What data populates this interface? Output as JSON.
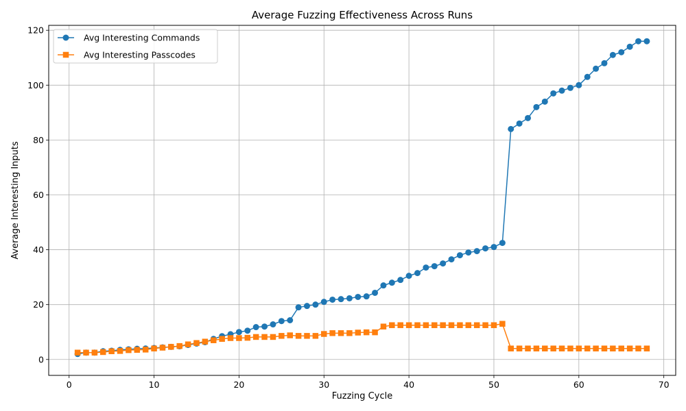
{
  "chart_data": {
    "type": "line",
    "title": "Average Fuzzing Effectiveness Across Runs",
    "xlabel": "Fuzzing Cycle",
    "ylabel": "Average Interesting Inputs",
    "xlim": [
      -2.4,
      71.4
    ],
    "ylim": [
      -5.8,
      121.8
    ],
    "xticks": [
      0,
      10,
      20,
      30,
      40,
      50,
      60,
      70
    ],
    "yticks": [
      0,
      20,
      40,
      60,
      80,
      100,
      120
    ],
    "grid": true,
    "legend_position": "top-left",
    "series": [
      {
        "name": "Avg Interesting Commands",
        "color": "#1f77b4",
        "marker": "circle",
        "x": [
          1,
          2,
          3,
          4,
          5,
          6,
          7,
          8,
          9,
          10,
          11,
          12,
          13,
          14,
          15,
          16,
          17,
          18,
          19,
          20,
          21,
          22,
          23,
          24,
          25,
          26,
          27,
          28,
          29,
          30,
          31,
          32,
          33,
          34,
          35,
          36,
          37,
          38,
          39,
          40,
          41,
          42,
          43,
          44,
          45,
          46,
          47,
          48,
          49,
          50,
          51,
          52,
          53,
          54,
          55,
          56,
          57,
          58,
          59,
          60,
          61,
          62,
          63,
          64,
          65,
          66,
          67,
          68
        ],
        "y": [
          2,
          2.5,
          2.5,
          3,
          3.2,
          3.5,
          3.7,
          3.9,
          4,
          4.2,
          4.4,
          4.6,
          4.8,
          5.3,
          5.8,
          6.3,
          7.5,
          8.5,
          9.2,
          10,
          10.5,
          11.8,
          12,
          12.8,
          14,
          14.3,
          19,
          19.5,
          20,
          21,
          21.8,
          22,
          22.3,
          22.8,
          23,
          24.3,
          27,
          28,
          29,
          30.5,
          31.5,
          33.5,
          34,
          35,
          36.5,
          38,
          39,
          39.5,
          40.5,
          41,
          42.5,
          84,
          86,
          88,
          92,
          94,
          97,
          98,
          99,
          100,
          103,
          106,
          108,
          111,
          112,
          114,
          116,
          116
        ]
      },
      {
        "name": "Avg Interesting Passcodes",
        "color": "#ff7f0e",
        "marker": "square",
        "x": [
          1,
          2,
          3,
          4,
          5,
          6,
          7,
          8,
          9,
          10,
          11,
          12,
          13,
          14,
          15,
          16,
          17,
          18,
          19,
          20,
          21,
          22,
          23,
          24,
          25,
          26,
          27,
          28,
          29,
          30,
          31,
          32,
          33,
          34,
          35,
          36,
          37,
          38,
          39,
          40,
          41,
          42,
          43,
          44,
          45,
          46,
          47,
          48,
          49,
          50,
          51,
          52,
          53,
          54,
          55,
          56,
          57,
          58,
          59,
          60,
          61,
          62,
          63,
          64,
          65,
          66,
          67,
          68
        ],
        "y": [
          2.5,
          2.5,
          2.5,
          2.7,
          3,
          3.1,
          3.4,
          3.5,
          3.6,
          4,
          4.3,
          4.6,
          4.9,
          5.5,
          6,
          6.5,
          7,
          7.5,
          7.8,
          7.8,
          7.9,
          8.2,
          8.2,
          8.2,
          8.6,
          8.8,
          8.6,
          8.6,
          8.6,
          9.3,
          9.6,
          9.6,
          9.6,
          9.8,
          9.9,
          9.9,
          12,
          12.5,
          12.5,
          12.5,
          12.5,
          12.5,
          12.5,
          12.5,
          12.5,
          12.5,
          12.5,
          12.5,
          12.5,
          12.5,
          13,
          4,
          4,
          4,
          4,
          4,
          4,
          4,
          4,
          4,
          4,
          4,
          4,
          4,
          4,
          4,
          4,
          4
        ]
      }
    ]
  }
}
